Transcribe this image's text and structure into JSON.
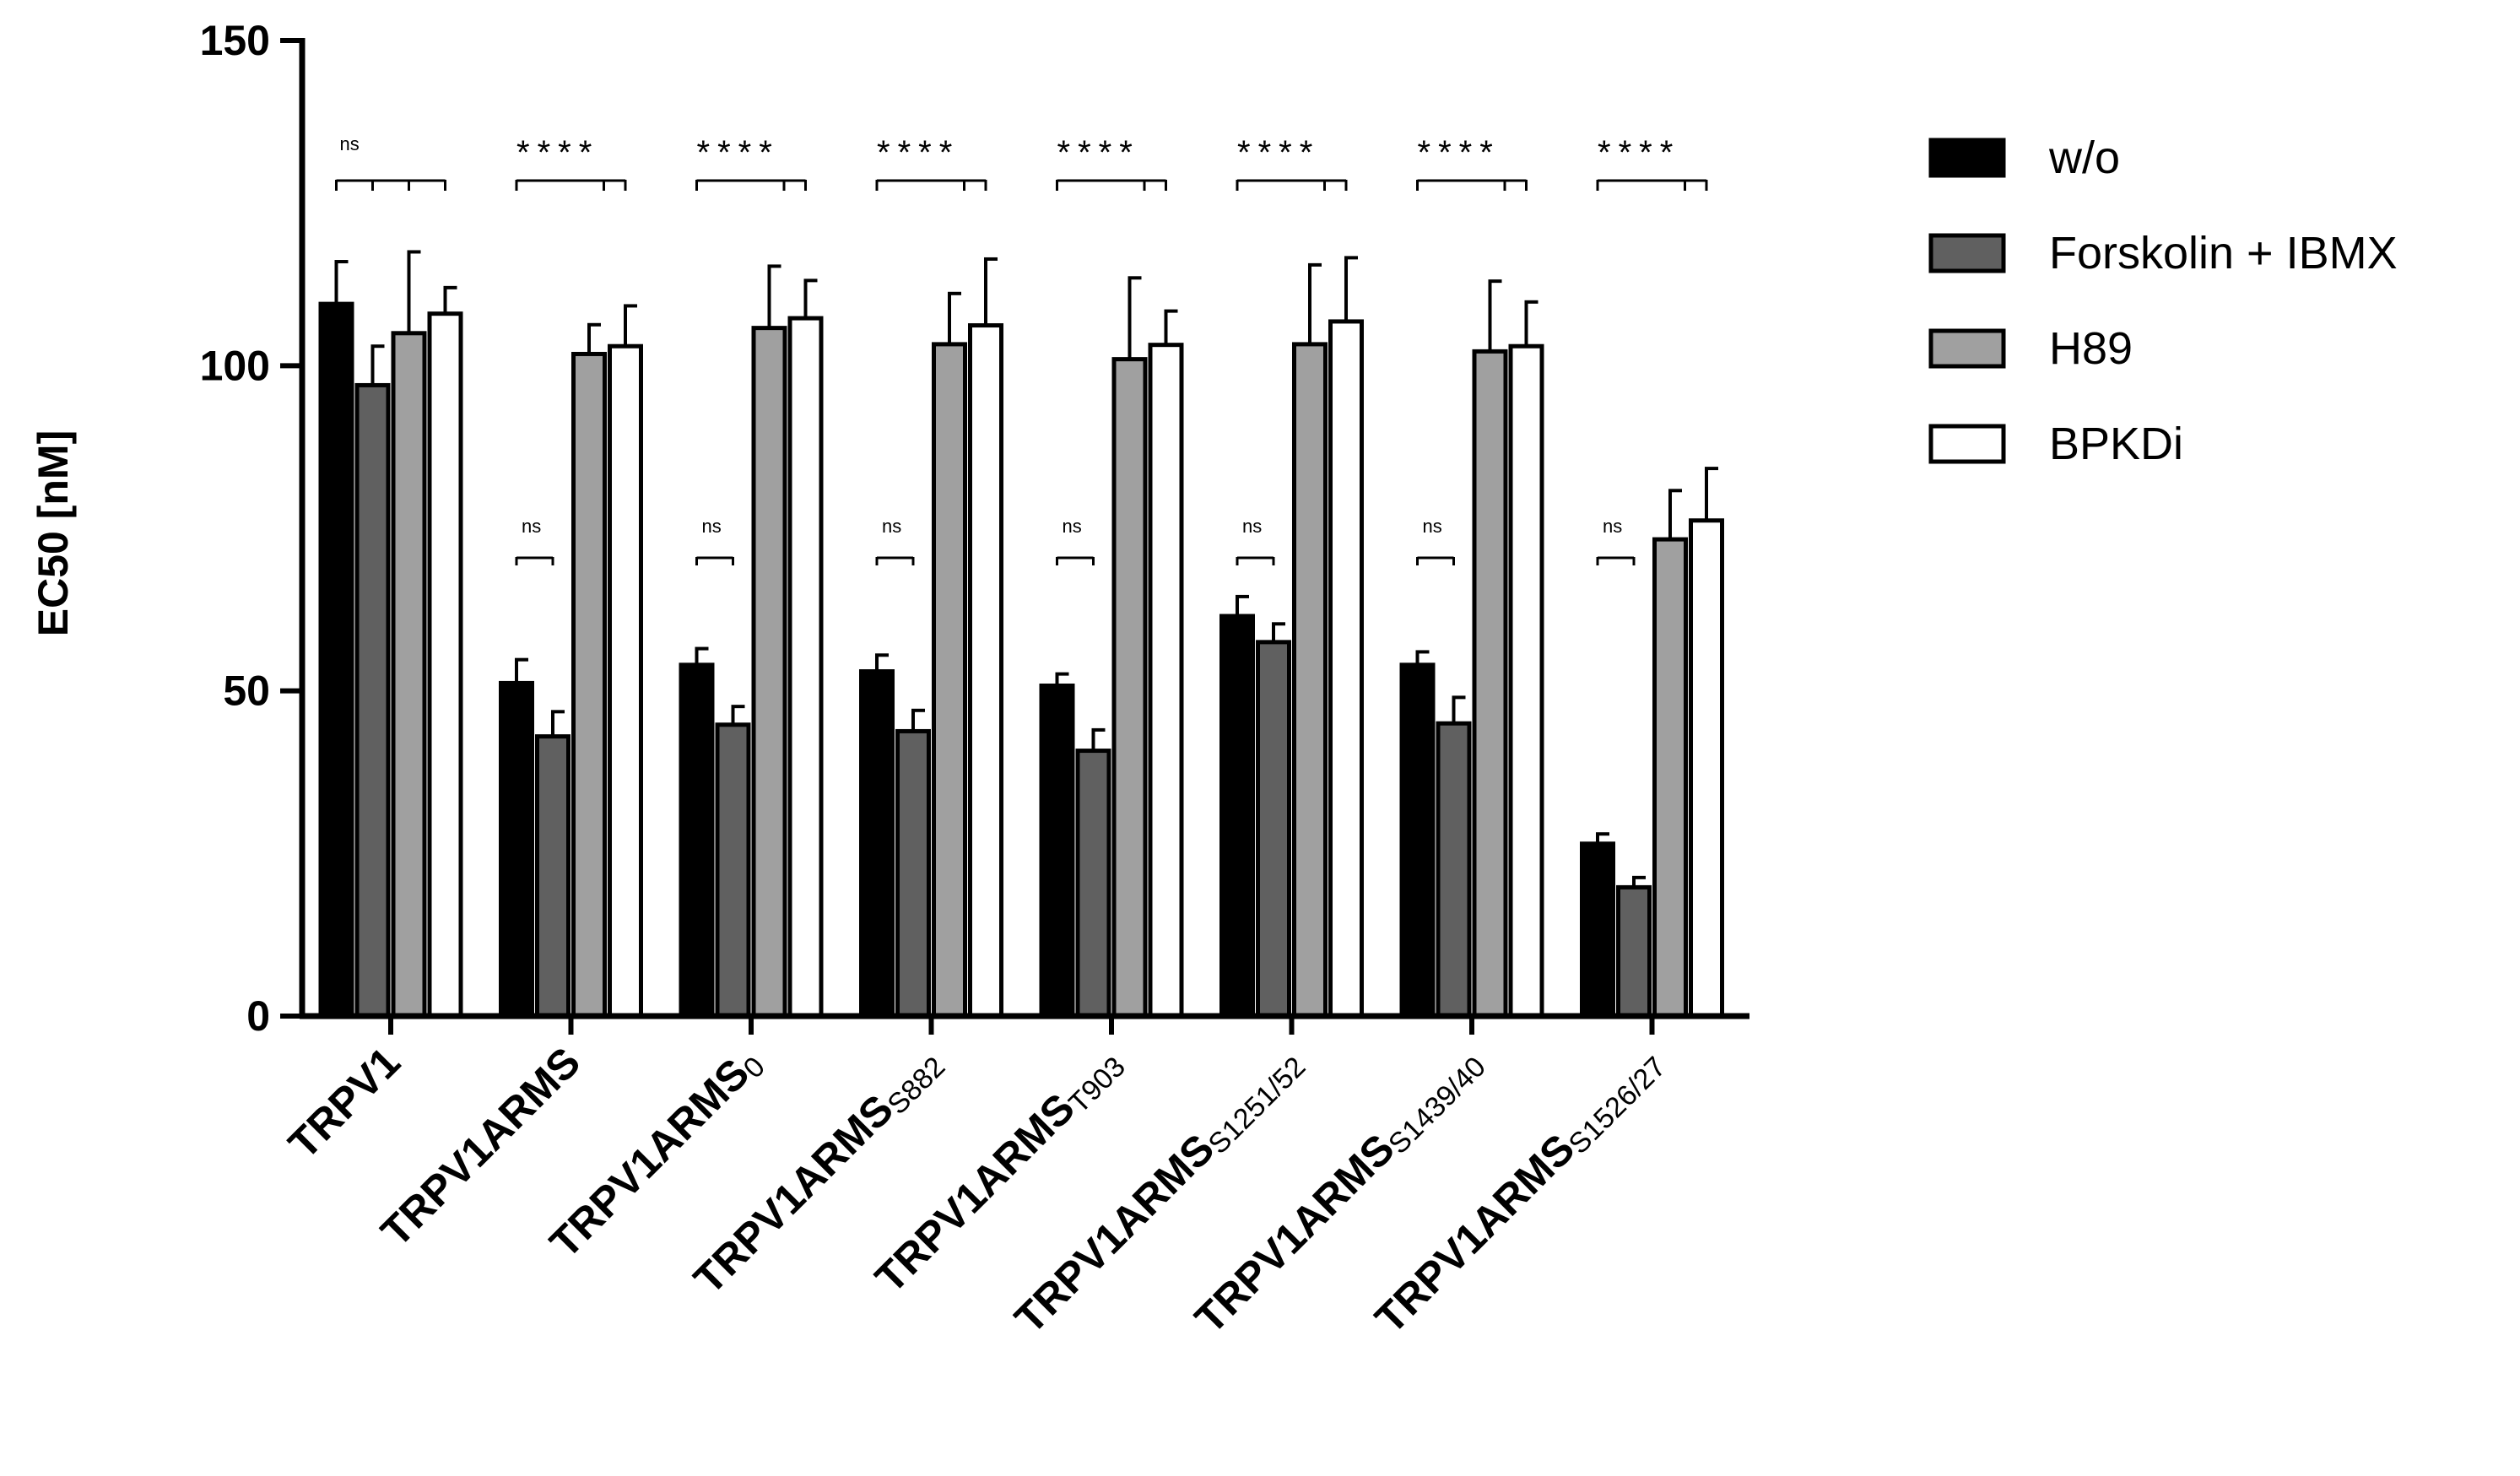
{
  "chart_data": {
    "type": "bar",
    "title": "",
    "xlabel": "",
    "ylabel": "EC50 [nM]",
    "ylim": [
      0,
      150
    ],
    "yticks": [
      0,
      50,
      100,
      150
    ],
    "categories": [
      {
        "main": "TRPV1",
        "sub": ""
      },
      {
        "main": "TRPV1ARMS",
        "sub": ""
      },
      {
        "main": "TRPV1ARMS",
        "sub": "0"
      },
      {
        "main": "TRPV1ARMS",
        "sub": "S882"
      },
      {
        "main": "TRPV1ARMS",
        "sub": "T903"
      },
      {
        "main": "TRPV1ARMS",
        "sub": "S1251/52"
      },
      {
        "main": "TRPV1ARMS",
        "sub": "S1439/40"
      },
      {
        "main": "TRPV1ARMS",
        "sub": "S1526/27"
      }
    ],
    "series": [
      {
        "name": "w/o",
        "color": "#000000",
        "values": [
          109.5,
          51.2,
          54,
          53,
          50.8,
          61.5,
          54,
          26.5
        ],
        "errors": [
          6.5,
          3.6,
          2.5,
          2.5,
          1.8,
          3,
          2,
          1.5
        ]
      },
      {
        "name": "Forskolin + IBMX",
        "color": "#606060",
        "values": [
          97,
          43,
          44.8,
          43.8,
          40.8,
          57.5,
          45,
          19.8
        ],
        "errors": [
          6,
          3.8,
          2.8,
          3.2,
          3.2,
          2.8,
          4,
          1.5
        ]
      },
      {
        "name": "H89",
        "color": "#a0a0a0",
        "values": [
          105,
          101.8,
          105.8,
          103.3,
          101,
          103.3,
          102.2,
          73.3
        ],
        "errors": [
          12.5,
          4.5,
          9.5,
          7.8,
          12.5,
          12.2,
          10.8,
          7.5
        ]
      },
      {
        "name": "BPKDi",
        "color": "#ffffff",
        "values": [
          108,
          103,
          107.3,
          106.2,
          103.2,
          106.8,
          103,
          76.2
        ],
        "errors": [
          4,
          6.2,
          5.8,
          10.2,
          5.2,
          9.8,
          6.8,
          8
        ]
      }
    ],
    "significance_top": [
      "ns",
      "****",
      "****",
      "****",
      "****",
      "****",
      "****",
      "****"
    ],
    "significance_pair": [
      "",
      "ns",
      "ns",
      "ns",
      "ns",
      "ns",
      "ns",
      "ns"
    ],
    "legend_position": "top-right"
  }
}
